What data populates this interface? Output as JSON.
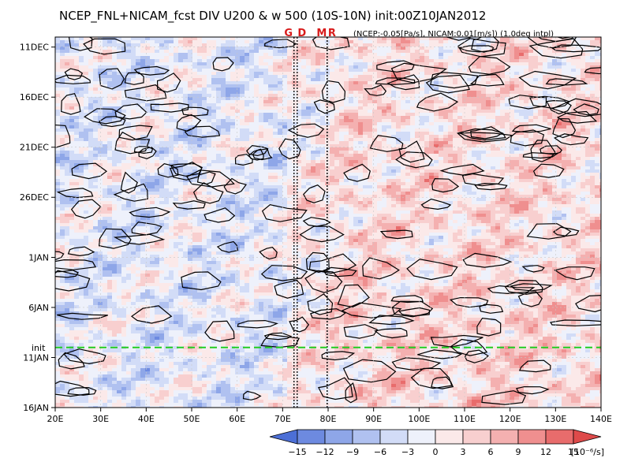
{
  "chart_data": {
    "type": "heatmap",
    "title": "NCEP_FNL+NICAM_fcst DIV U200 & w 500 (10S-10N) init:00Z10JAN2012",
    "note": "(NCEP:-0.05[Pa/s], NICAM:0.01[m/s]) (1.0deg intpl)",
    "x_range": [
      20,
      140
    ],
    "x_ticks": [
      {
        "value": 20,
        "label": "20E"
      },
      {
        "value": 30,
        "label": "30E"
      },
      {
        "value": 40,
        "label": "40E"
      },
      {
        "value": 50,
        "label": "50E"
      },
      {
        "value": 60,
        "label": "60E"
      },
      {
        "value": 70,
        "label": "70E"
      },
      {
        "value": 80,
        "label": "80E"
      },
      {
        "value": 90,
        "label": "90E"
      },
      {
        "value": 100,
        "label": "100E"
      },
      {
        "value": 110,
        "label": "110E"
      },
      {
        "value": 120,
        "label": "120E"
      },
      {
        "value": 130,
        "label": "130E"
      },
      {
        "value": 140,
        "label": "140E"
      }
    ],
    "y_ticks": [
      {
        "date": "2011-12-11",
        "label": "11DEC"
      },
      {
        "date": "2011-12-16",
        "label": "16DEC"
      },
      {
        "date": "2011-12-21",
        "label": "21DEC"
      },
      {
        "date": "2011-12-26",
        "label": "26DEC"
      },
      {
        "date": "2012-01-01",
        "label": "1JAN"
      },
      {
        "date": "2012-01-06",
        "label": "6JAN"
      },
      {
        "date": "2012-01-11",
        "label": "11JAN"
      },
      {
        "date": "2012-01-16",
        "label": "16JAN"
      }
    ],
    "y_range": [
      "2011-12-10",
      "2012-01-16"
    ],
    "y_direction": "down",
    "init_line": {
      "date": "2012-01-10",
      "label": "init",
      "color": "#22cc22"
    },
    "vertical_markers": [
      {
        "label": "G",
        "lons": [
          72.5
        ]
      },
      {
        "label": "D",
        "lons": [
          73.2
        ]
      },
      {
        "label": "M",
        "lons": [
          79.8
        ]
      },
      {
        "label": "R",
        "lons": [
          79.8
        ]
      }
    ],
    "colorbar": {
      "levels": [
        -15,
        -12,
        -9,
        -6,
        -3,
        0,
        3,
        6,
        9,
        12,
        15
      ],
      "colors": [
        "#4c6fd6",
        "#6d8ae0",
        "#8ea6e8",
        "#b0c1f0",
        "#d2dcf7",
        "#eef1fb",
        "#fbe9e9",
        "#f8cfcf",
        "#f4b0b0",
        "#ef8f8f",
        "#e86c6c",
        "#de4a4a"
      ],
      "unit": "[10⁻⁶/s]"
    },
    "grid": true,
    "colors": {
      "negative": "#4c6fd6",
      "positive": "#de4a4a",
      "contour": "#000000",
      "marker": "#d81b1b"
    }
  }
}
